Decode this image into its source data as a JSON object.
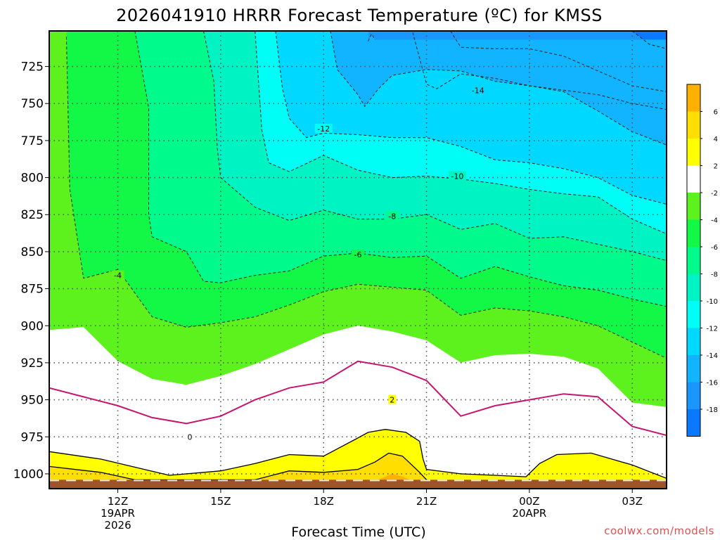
{
  "chart_data": {
    "type": "contour",
    "title": "2026041910 HRRR Forecast Temperature (ºC) for KMSS",
    "xlabel": "Forecast Time (UTC)",
    "credit": "coolwx.com/models",
    "x_ticks": [
      {
        "label": "12Z",
        "sub1": "19APR",
        "sub2": "2026",
        "hour": 12
      },
      {
        "label": "15Z",
        "sub1": "",
        "sub2": "",
        "hour": 15
      },
      {
        "label": "18Z",
        "sub1": "",
        "sub2": "",
        "hour": 18
      },
      {
        "label": "21Z",
        "sub1": "",
        "sub2": "",
        "hour": 21
      },
      {
        "label": "00Z",
        "sub1": "20APR",
        "sub2": "",
        "hour": 24
      },
      {
        "label": "03Z",
        "sub1": "",
        "sub2": "",
        "hour": 27
      }
    ],
    "xlim_hours": [
      10,
      28
    ],
    "y_ticks": [
      725,
      750,
      775,
      800,
      825,
      850,
      875,
      900,
      925,
      950,
      975,
      1000
    ],
    "ylim_hPa": [
      1010,
      701
    ],
    "surface_pressure_hPa": 1004,
    "fill_levels": [
      {
        "min": -20,
        "max": -18,
        "color": "#0a78ff"
      },
      {
        "min": -18,
        "max": -16,
        "color": "#1a96ff"
      },
      {
        "min": -16,
        "max": -14,
        "color": "#12b4ff"
      },
      {
        "min": -14,
        "max": -12,
        "color": "#00d8ff"
      },
      {
        "min": -12,
        "max": -10,
        "color": "#00fdf6"
      },
      {
        "min": -10,
        "max": -8,
        "color": "#00f3c2"
      },
      {
        "min": -8,
        "max": -6,
        "color": "#00fa8c"
      },
      {
        "min": -6,
        "max": -4,
        "color": "#13f846"
      },
      {
        "min": -4,
        "max": -2,
        "color": "#5df21e"
      },
      {
        "min": -2,
        "max": 2,
        "color": "#ffffff"
      },
      {
        "min": 2,
        "max": 4,
        "color": "#ffff00"
      },
      {
        "min": 4,
        "max": 6,
        "color": "#ffde00"
      },
      {
        "min": 6,
        "max": 8,
        "color": "#ffb000"
      }
    ],
    "colorbar_labels": [
      "6",
      "4",
      "2",
      "-2",
      "-4",
      "-6",
      "-8",
      "-10",
      "-12",
      "-14",
      "-16",
      "-18"
    ],
    "contours": [
      {
        "level": 2,
        "label": "2",
        "style": "solid-black",
        "label_at": [
          20.0,
          950
        ],
        "points": [
          [
            10,
            985
          ],
          [
            11.5,
            990
          ],
          [
            13.5,
            1001
          ],
          [
            15,
            998
          ],
          [
            16,
            993
          ],
          [
            17,
            987
          ],
          [
            18,
            988
          ],
          [
            18.9,
            977
          ],
          [
            19.3,
            972
          ],
          [
            19.8,
            970
          ],
          [
            20.4,
            972
          ],
          [
            20.8,
            978
          ],
          [
            20.9,
            990
          ],
          [
            21,
            997
          ],
          [
            22,
            1000
          ],
          [
            23,
            1001
          ],
          [
            23.9,
            1002
          ],
          [
            24.3,
            993
          ],
          [
            24.8,
            987
          ],
          [
            25.8,
            986
          ],
          [
            27,
            994
          ],
          [
            28,
            1003
          ]
        ]
      },
      {
        "level": 4,
        "label": "",
        "style": "solid-black",
        "label_at": null,
        "points": [
          [
            10,
            995
          ],
          [
            11.5,
            999
          ],
          [
            12.5,
            1004
          ],
          [
            16,
            1004
          ],
          [
            17,
            998
          ],
          [
            18,
            999
          ],
          [
            19,
            997
          ],
          [
            19.5,
            992
          ],
          [
            19.9,
            986
          ],
          [
            20.3,
            988
          ],
          [
            20.8,
            999
          ],
          [
            21,
            1004
          ]
        ]
      },
      {
        "level": 0,
        "label": "0",
        "style": "solid-magenta",
        "label_at": [
          14.1,
          975
        ],
        "points": [
          [
            10,
            942
          ],
          [
            11,
            948
          ],
          [
            12,
            954
          ],
          [
            13,
            962
          ],
          [
            14,
            966
          ],
          [
            15,
            961
          ],
          [
            16,
            950
          ],
          [
            17,
            942
          ],
          [
            18,
            938
          ],
          [
            19,
            924
          ],
          [
            20,
            928
          ],
          [
            21,
            937
          ],
          [
            22,
            961
          ],
          [
            23,
            954
          ],
          [
            24,
            950
          ],
          [
            25,
            946
          ],
          [
            26,
            948
          ],
          [
            27,
            968
          ],
          [
            28,
            974
          ]
        ]
      },
      {
        "level": -2,
        "label": "",
        "style": "boundary",
        "points": [
          [
            10,
            903
          ],
          [
            11,
            901
          ],
          [
            12,
            924
          ],
          [
            13,
            936
          ],
          [
            14,
            940
          ],
          [
            15,
            934
          ],
          [
            16,
            926
          ],
          [
            17,
            916
          ],
          [
            18,
            906
          ],
          [
            19,
            900
          ],
          [
            20,
            904
          ],
          [
            21,
            910
          ],
          [
            22,
            925
          ],
          [
            23,
            920
          ],
          [
            24,
            919
          ],
          [
            25,
            921
          ],
          [
            26,
            929
          ],
          [
            27,
            952
          ],
          [
            28,
            955
          ]
        ]
      },
      {
        "level": -4,
        "label": "-4",
        "style": "dashed",
        "label_at": [
          12.0,
          866
        ],
        "points": [
          [
            10.5,
            705
          ],
          [
            10.6,
            808
          ],
          [
            11,
            868
          ],
          [
            12,
            862
          ],
          [
            13,
            894
          ],
          [
            14,
            901
          ],
          [
            15,
            898
          ],
          [
            16,
            894
          ],
          [
            17,
            886
          ],
          [
            18,
            877
          ],
          [
            19,
            872
          ],
          [
            20,
            874
          ],
          [
            21,
            876
          ],
          [
            22,
            893
          ],
          [
            23,
            888
          ],
          [
            24,
            890
          ],
          [
            25,
            894
          ],
          [
            26,
            900
          ],
          [
            27,
            911
          ],
          [
            28,
            922
          ]
        ]
      },
      {
        "level": -6,
        "label": "-6",
        "style": "dashed",
        "label_at": [
          19.0,
          852
        ],
        "points": [
          [
            12.5,
            701
          ],
          [
            12.9,
            753
          ],
          [
            12.9,
            825
          ],
          [
            13,
            840
          ],
          [
            14,
            850
          ],
          [
            14.5,
            870
          ],
          [
            15,
            871
          ],
          [
            16,
            866
          ],
          [
            17,
            863
          ],
          [
            18,
            853
          ],
          [
            19,
            851
          ],
          [
            20,
            854
          ],
          [
            21,
            853
          ],
          [
            22,
            868
          ],
          [
            23,
            860
          ],
          [
            24,
            867
          ],
          [
            25,
            873
          ],
          [
            26,
            876
          ],
          [
            27,
            882
          ],
          [
            28,
            887
          ]
        ]
      },
      {
        "level": -8,
        "label": "-8",
        "style": "dashed",
        "label_at": [
          20.0,
          826
        ],
        "points": [
          [
            14.5,
            701
          ],
          [
            14.8,
            735
          ],
          [
            14.9,
            780
          ],
          [
            15,
            800
          ],
          [
            16,
            820
          ],
          [
            17,
            829
          ],
          [
            18,
            822
          ],
          [
            19,
            828
          ],
          [
            20,
            828
          ],
          [
            21,
            825
          ],
          [
            22,
            835
          ],
          [
            23,
            831
          ],
          [
            24,
            841
          ],
          [
            25,
            840
          ],
          [
            26,
            845
          ],
          [
            27,
            850
          ],
          [
            28,
            856
          ]
        ]
      },
      {
        "level": -10,
        "label": "-10",
        "style": "dashed",
        "label_at": [
          21.9,
          799
        ],
        "points": [
          [
            16.0,
            701
          ],
          [
            16.2,
            768
          ],
          [
            16.4,
            790
          ],
          [
            17,
            796
          ],
          [
            18,
            785
          ],
          [
            19,
            795
          ],
          [
            20,
            800
          ],
          [
            21,
            799
          ],
          [
            22,
            801
          ],
          [
            23,
            804
          ],
          [
            24,
            808
          ],
          [
            25,
            811
          ],
          [
            26,
            813
          ],
          [
            27,
            828
          ],
          [
            28,
            838
          ]
        ]
      },
      {
        "level": -12,
        "label": "-12",
        "style": "dashed",
        "label_at": [
          18.0,
          767
        ],
        "points": [
          [
            16.6,
            701
          ],
          [
            16.8,
            740
          ],
          [
            17,
            760
          ],
          [
            17.5,
            773
          ],
          [
            18,
            770
          ],
          [
            19,
            771
          ],
          [
            20,
            773
          ],
          [
            21,
            773
          ],
          [
            22,
            779
          ],
          [
            23,
            788
          ],
          [
            24,
            790
          ],
          [
            25,
            794
          ],
          [
            26,
            800
          ],
          [
            27,
            812
          ],
          [
            28,
            818
          ]
        ]
      },
      {
        "level": -14,
        "label": "-14",
        "style": "dashed",
        "label_at": [
          22.5,
          741
        ],
        "points": [
          [
            18.2,
            701
          ],
          [
            18.4,
            727
          ],
          [
            19,
            744
          ],
          [
            19.2,
            752
          ],
          [
            19.6,
            740
          ],
          [
            20,
            731
          ],
          [
            21,
            727
          ],
          [
            22,
            728
          ],
          [
            23,
            735
          ],
          [
            24,
            738
          ],
          [
            25,
            742
          ],
          [
            26,
            755
          ],
          [
            27,
            769
          ],
          [
            28,
            778
          ]
        ]
      },
      {
        "level": -14,
        "label": "",
        "style": "dashed",
        "label_at": null,
        "points": [
          [
            20.6,
            702
          ],
          [
            21,
            737
          ],
          [
            21.3,
            740
          ],
          [
            22,
            730
          ],
          [
            23,
            733
          ],
          [
            24,
            738
          ],
          [
            25,
            741
          ],
          [
            26,
            744
          ],
          [
            27,
            750
          ],
          [
            28,
            754
          ]
        ]
      },
      {
        "level": -16,
        "label": "",
        "style": "dashed",
        "label_at": null,
        "points": [
          [
            19.3,
            708
          ],
          [
            19.4,
            703
          ],
          [
            19.5,
            707
          ]
        ]
      },
      {
        "level": -16,
        "label": "",
        "style": "dashed",
        "label_at": null,
        "points": [
          [
            21.7,
            701
          ],
          [
            22,
            712
          ],
          [
            23,
            713
          ],
          [
            24,
            713
          ],
          [
            25,
            718
          ],
          [
            26,
            728
          ],
          [
            27,
            738
          ],
          [
            28,
            742
          ]
        ]
      },
      {
        "level": -18,
        "label": "",
        "style": "dashed",
        "label_at": null,
        "points": [
          [
            27,
            701
          ],
          [
            27.5,
            710
          ],
          [
            28,
            713
          ]
        ]
      }
    ],
    "grid": true
  }
}
